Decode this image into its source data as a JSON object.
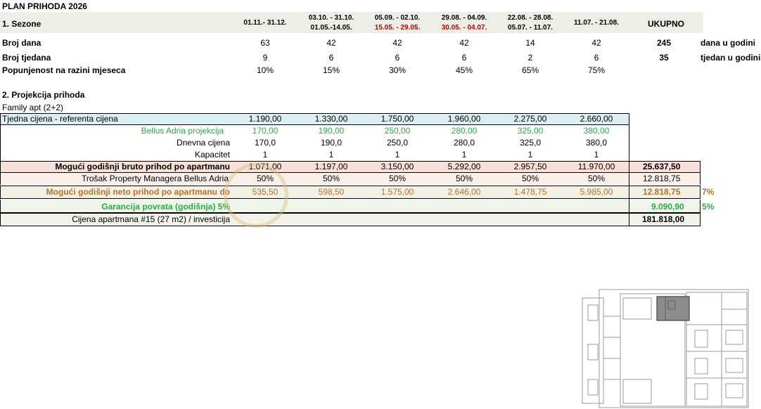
{
  "title": "PLAN PRIHODA 2026",
  "seasons": {
    "heading": "1. Sezone",
    "periods": [
      {
        "line1": "01.11.- 31.12.",
        "line2": "",
        "color2": ""
      },
      {
        "line1": "03.10. - 31.10.",
        "line2": "01.05.-14.05.",
        "color2": "#000000"
      },
      {
        "line1": "05.09. - 02.10.",
        "line2": "15.05. - 29.05.",
        "color2": "#c00000"
      },
      {
        "line1": "29.08. - 04.09.",
        "line2": "30.05. - 04.07.",
        "color2": "#c00000"
      },
      {
        "line1": "22.08. - 28.08.",
        "line2": "05.07. - 11.07.",
        "color2": "#000000"
      },
      {
        "line1": "11.07. - 21.08.",
        "line2": "",
        "color2": ""
      }
    ],
    "total_header": "UKUPNO",
    "rows": [
      {
        "label": "Broj dana",
        "values": [
          "63",
          "42",
          "42",
          "42",
          "14",
          "42"
        ],
        "total": "245",
        "unit": "dana u godini"
      },
      {
        "label": "Broj tjedana",
        "values": [
          "9",
          "6",
          "6",
          "6",
          "2",
          "6"
        ],
        "total": "35",
        "unit": "tjedan u godini"
      },
      {
        "label": "Popunjenost na razini mjeseca",
        "values": [
          "10%",
          "15%",
          "30%",
          "45%",
          "65%",
          "75%"
        ],
        "total": "",
        "unit": ""
      }
    ]
  },
  "projection": {
    "heading": "2. Projekcija prihoda",
    "subheading": "Family apt  (2+2)",
    "weekly": {
      "label": "Tjedna cijena - referenta cijena",
      "values": [
        "1.190,00",
        "1.330,00",
        "1.750,00",
        "1.960,00",
        "2.275,00",
        "2.660,00"
      ]
    },
    "bellus": {
      "label": "Bellus Adria projekcija",
      "values": [
        "170,00",
        "190,00",
        "250,00",
        "280,00",
        "325,00",
        "380,00"
      ]
    },
    "daily": {
      "label": "Dnevna cijena",
      "values": [
        "170,0",
        "190,0",
        "250,0",
        "280,0",
        "325,0",
        "380,0"
      ]
    },
    "capacity": {
      "label": "Kapacitet",
      "values": [
        "1",
        "1",
        "1",
        "1",
        "1",
        "1"
      ]
    },
    "gross": {
      "label": "Mogući godišnji bruto prihod po apartmanu",
      "values": [
        "1.071,00",
        "1.197,00",
        "3.150,00",
        "5.292,00",
        "2.957,50",
        "11.970,00"
      ],
      "total": "25.637,50"
    },
    "mgmt": {
      "label": "Trošak Property Managera Bellus Adria",
      "values": [
        "50%",
        "50%",
        "50%",
        "50%",
        "50%",
        "50%"
      ],
      "total": "12.818,75"
    },
    "net": {
      "label": "Mogući godišnji neto prihod po apartmanu do",
      "values": [
        "535,50",
        "598,50",
        "1.575,00",
        "2.646,00",
        "1.478,75",
        "5.985,00"
      ],
      "total": "12.818,75",
      "pct": "7%"
    },
    "guarantee": {
      "label": "Garancija povrata (godišnja) 5%",
      "total": "9.090,90",
      "pct": "5%"
    },
    "price": {
      "label": "Cijena apartmana #15 (27 m2) /  investicija",
      "total": "181.818,00"
    }
  },
  "colors": {
    "band": "#efeee6",
    "weekly_bg": "#dcedf3",
    "gross_bg": "#f6e0d8",
    "mgmt_bg": "#fbefea",
    "net_bg": "#f2f1e4",
    "guarantee_bg": "#eef5ea",
    "price_bg": "#f3f2ea",
    "green": "#2faa4b",
    "brown": "#b5732a"
  }
}
